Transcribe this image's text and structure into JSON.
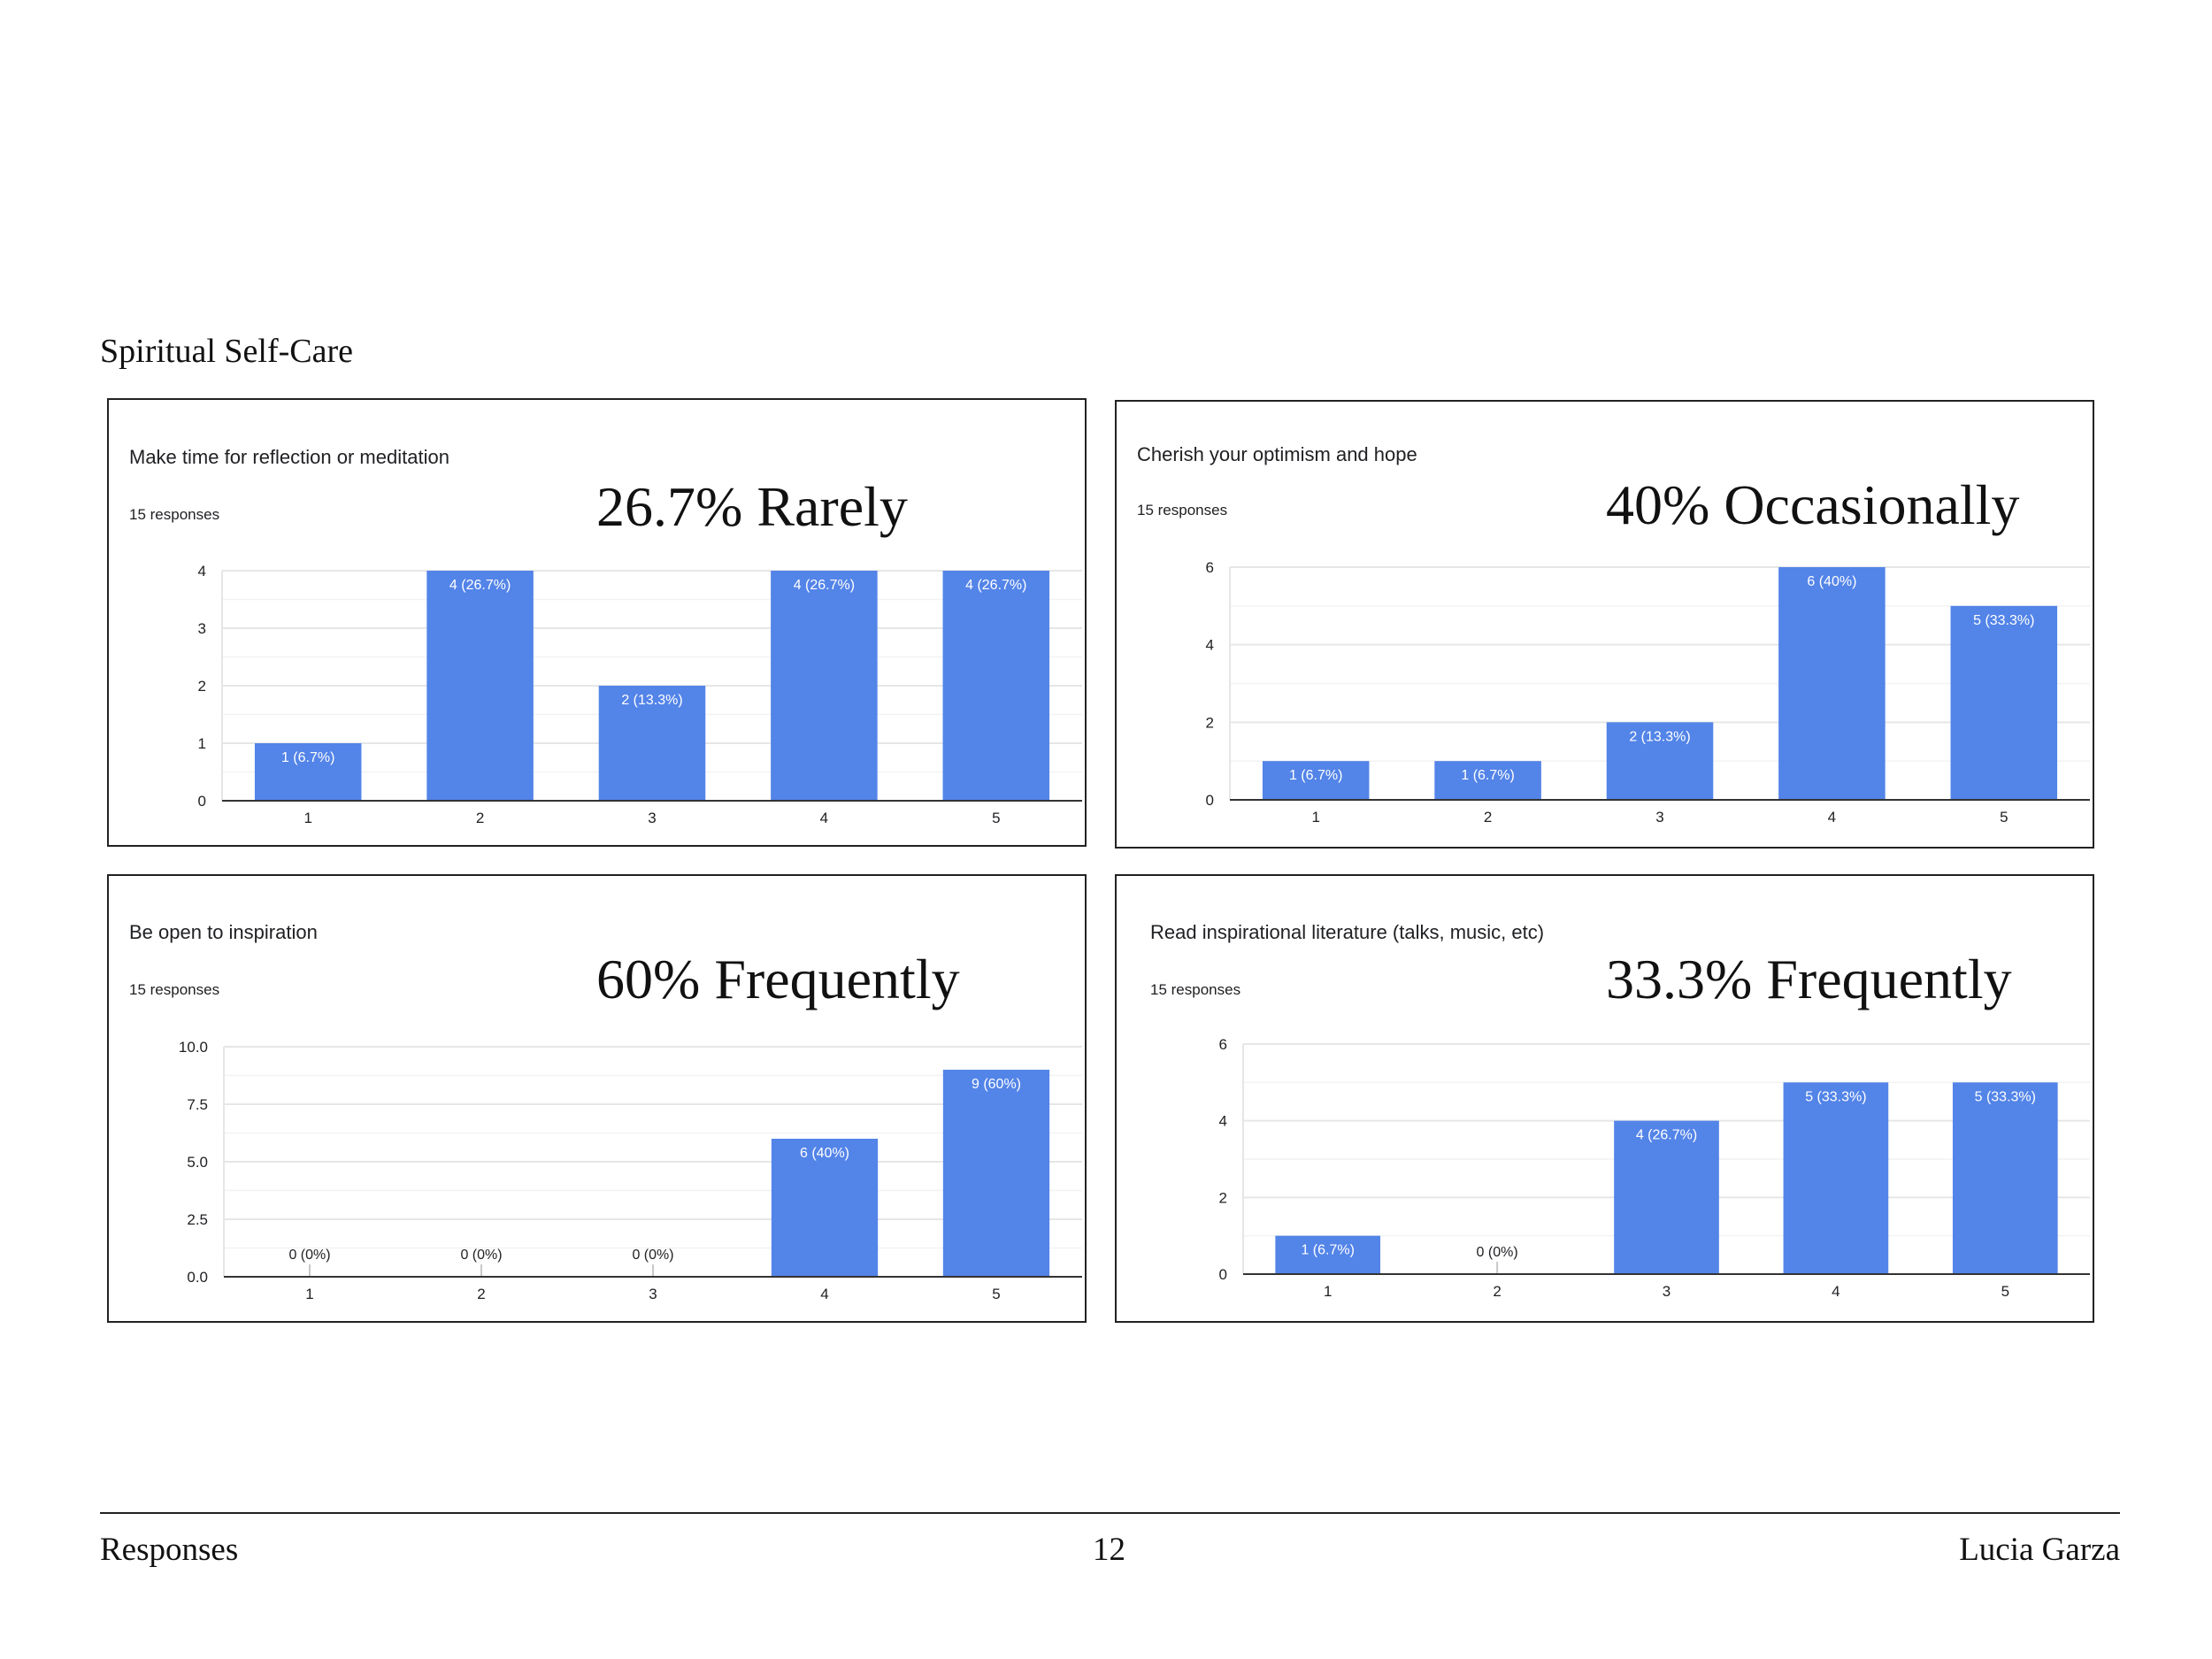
{
  "section_title": "Spiritual Self-Care",
  "footer": {
    "left": "Responses",
    "page_number": "12",
    "right": "Lucia Garza"
  },
  "colors": {
    "bar": "#5384e8",
    "grid": "#e6e6e6",
    "axis": "#333333",
    "label_inside": "#ffffff",
    "label_outside": "#202124"
  },
  "chart_data": [
    {
      "type": "bar",
      "title": "Make time for reflection or meditation",
      "responses": "15 responses",
      "headline": "26.7% Rarely",
      "categories": [
        "1",
        "2",
        "3",
        "4",
        "5"
      ],
      "values": [
        1,
        4,
        2,
        4,
        4
      ],
      "data_labels": [
        "1 (6.7%)",
        "4 (26.7%)",
        "2 (13.3%)",
        "4 (26.7%)",
        "4 (26.7%)"
      ],
      "ylim": [
        0,
        4
      ],
      "yticks": [
        "0",
        "1",
        "2",
        "3",
        "4"
      ],
      "ytick_values": [
        0,
        1,
        2,
        3,
        4
      ],
      "grid": true
    },
    {
      "type": "bar",
      "title": "Cherish your optimism and hope",
      "responses": "15 responses",
      "headline": "40% Occasionally",
      "categories": [
        "1",
        "2",
        "3",
        "4",
        "5"
      ],
      "values": [
        1,
        1,
        2,
        6,
        5
      ],
      "data_labels": [
        "1 (6.7%)",
        "1 (6.7%)",
        "2 (13.3%)",
        "6 (40%)",
        "5 (33.3%)"
      ],
      "ylim": [
        0,
        6
      ],
      "yticks": [
        "0",
        "2",
        "4",
        "6"
      ],
      "ytick_values": [
        0,
        2,
        4,
        6
      ],
      "grid": true
    },
    {
      "type": "bar",
      "title": "Be open to inspiration",
      "responses": "15 responses",
      "headline": "60% Frequently",
      "categories": [
        "1",
        "2",
        "3",
        "4",
        "5"
      ],
      "values": [
        0,
        0,
        0,
        6,
        9
      ],
      "data_labels": [
        "0 (0%)",
        "0 (0%)",
        "0 (0%)",
        "6 (40%)",
        "9 (60%)"
      ],
      "ylim": [
        0,
        10
      ],
      "yticks": [
        "0.0",
        "2.5",
        "5.0",
        "7.5",
        "10.0"
      ],
      "ytick_values": [
        0,
        2.5,
        5,
        7.5,
        10
      ],
      "grid": true
    },
    {
      "type": "bar",
      "title": "Read inspirational literature (talks, music, etc)",
      "responses": "15 responses",
      "headline": "33.3% Frequently",
      "categories": [
        "1",
        "2",
        "3",
        "4",
        "5"
      ],
      "values": [
        1,
        0,
        4,
        5,
        5
      ],
      "data_labels": [
        "1 (6.7%)",
        "0 (0%)",
        "4 (26.7%)",
        "5 (33.3%)",
        "5 (33.3%)"
      ],
      "ylim": [
        0,
        6
      ],
      "yticks": [
        "0",
        "2",
        "4",
        "6"
      ],
      "ytick_values": [
        0,
        2,
        4,
        6
      ],
      "grid": true
    }
  ]
}
